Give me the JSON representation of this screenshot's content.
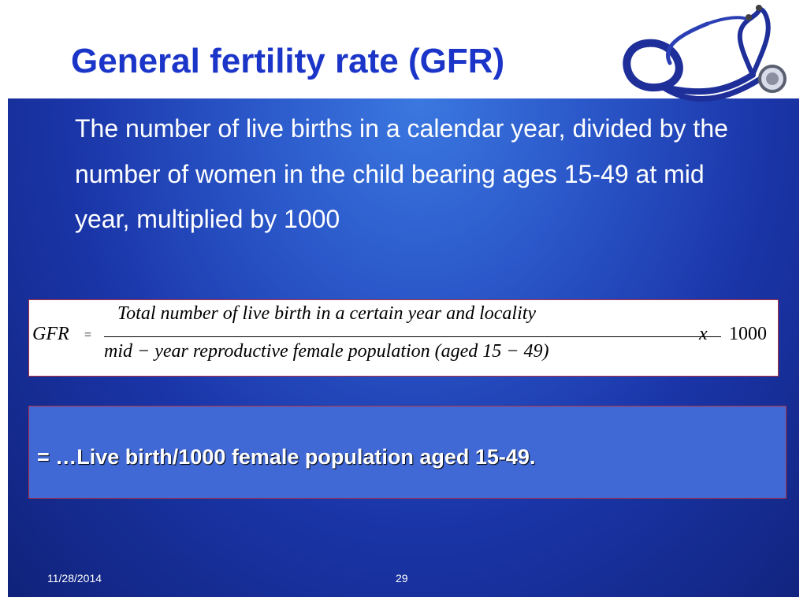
{
  "slide": {
    "title": "General fertility rate (GFR)",
    "body": "The number of live births in a calendar year, divided by the number of women in the child bearing ages 15-49 at mid year, multiplied by 1000",
    "formula": {
      "lhs": "GFR",
      "equals": "=",
      "numerator": "Total  number of  live  birth in  a  certain  year and  locality",
      "denominator": "mid − year  reproductive  female  population  (aged  15 − 49)",
      "times": "x",
      "multiplier": "1000"
    },
    "result": "= …Live birth/1000 female population aged 15-49.",
    "footer": {
      "date": "11/28/2014",
      "page": "29"
    }
  },
  "colors": {
    "title": "#1a35c8",
    "panel": "#1a35a8",
    "result_box": "#4169d6",
    "stethoscope": "#1f2f9a"
  },
  "icons": {
    "decoration": "stethoscope-icon"
  }
}
